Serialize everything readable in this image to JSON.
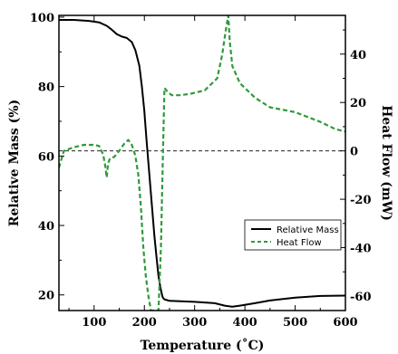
{
  "chart_data": {
    "type": "line",
    "title": "",
    "xlabel": "Temperature (˚C)",
    "ylabel_left": "Relative Mass (%)",
    "ylabel_right": "Heat Flow (mW)",
    "xlim": [
      30,
      600
    ],
    "ylim_left": [
      15.5,
      100.5
    ],
    "ylim_right": [
      -66,
      56
    ],
    "x_ticks": [
      100,
      200,
      300,
      400,
      500,
      600
    ],
    "y_left_ticks": [
      20,
      40,
      60,
      80,
      100
    ],
    "y_right_ticks": [
      -60,
      -40,
      -20,
      0,
      20,
      40
    ],
    "grid": false,
    "legend_position": "center-right",
    "reference_line": {
      "axis": "right",
      "value": 0,
      "style": "dashed",
      "color": "#000000"
    },
    "series": [
      {
        "name": "Relative Mass",
        "axis": "left",
        "color": "#000000",
        "style": "solid",
        "x": [
          30,
          60,
          90,
          110,
          125,
          135,
          145,
          155,
          165,
          175,
          182,
          190,
          195,
          200,
          204,
          208,
          212,
          216,
          220,
          224,
          228,
          232,
          236,
          238,
          240,
          245,
          250,
          300,
          340,
          360,
          375,
          390,
          420,
          450,
          500,
          550,
          600
        ],
        "y": [
          99.2,
          99.2,
          98.9,
          98.5,
          97.5,
          96.4,
          95.1,
          94.4,
          94.0,
          92.8,
          90.5,
          86.0,
          80.0,
          73.0,
          65.0,
          58.0,
          51.0,
          44.0,
          37.0,
          31.0,
          25.5,
          22.0,
          19.5,
          19.0,
          18.7,
          18.5,
          18.3,
          18.0,
          17.6,
          16.9,
          16.6,
          16.9,
          17.6,
          18.4,
          19.2,
          19.7,
          19.8
        ]
      },
      {
        "name": "Heat Flow",
        "axis": "right",
        "color": "#2f9a3c",
        "style": "dashed",
        "x": [
          30,
          40,
          60,
          80,
          100,
          110,
          118,
          122,
          125,
          128,
          132,
          140,
          150,
          160,
          168,
          175,
          182,
          188,
          193,
          198,
          203,
          208,
          213,
          220,
          228,
          233,
          237,
          240,
          244,
          248,
          255,
          270,
          290,
          320,
          345,
          355,
          362,
          367,
          370,
          375,
          390,
          420,
          450,
          500,
          550,
          580,
          600
        ],
        "y": [
          -7,
          0,
          1.5,
          2.5,
          2.5,
          2,
          -1.5,
          -6,
          -11,
          -5,
          -3,
          -2.5,
          0,
          3,
          4.5,
          2.5,
          -2,
          -10,
          -23,
          -40,
          -52,
          -60,
          -66,
          -66,
          -66,
          -40,
          0,
          26,
          25,
          24,
          23,
          23,
          23.5,
          25,
          30,
          40,
          50,
          56,
          45,
          35,
          28,
          22,
          18,
          16,
          12,
          9,
          8
        ]
      }
    ]
  }
}
